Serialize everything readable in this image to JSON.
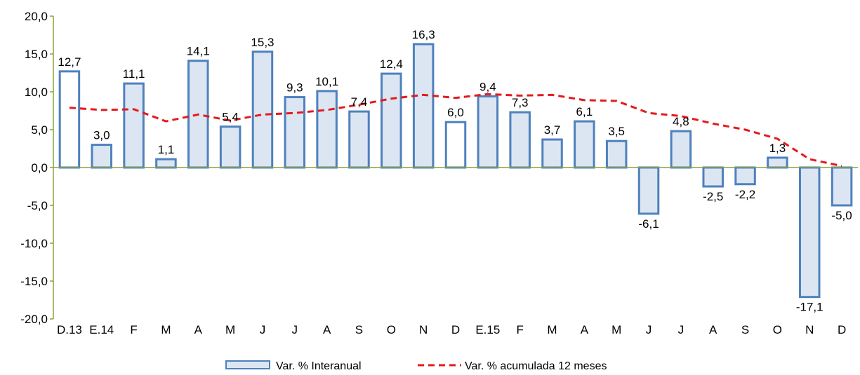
{
  "chart_data": {
    "type": "bar",
    "categories": [
      "D.13",
      "E.14",
      "F",
      "M",
      "A",
      "M",
      "J",
      "J",
      "A",
      "S",
      "O",
      "N",
      "D",
      "E.15",
      "F",
      "M",
      "A",
      "M",
      "J",
      "J",
      "A",
      "S",
      "O",
      "N",
      "D"
    ],
    "series": [
      {
        "name": "Var. % Interanual",
        "type": "bar",
        "values": [
          12.7,
          3.0,
          11.1,
          1.1,
          14.1,
          5.4,
          15.3,
          9.3,
          10.1,
          7.4,
          12.4,
          16.3,
          6.0,
          9.4,
          7.3,
          3.7,
          6.1,
          3.5,
          -6.1,
          4.8,
          -2.5,
          -2.2,
          1.3,
          -17.1,
          -5.0
        ],
        "labels": [
          "12,7",
          "3,0",
          "11,1",
          "1,1",
          "14,1",
          "5,4",
          "15,3",
          "9,3",
          "10,1",
          "7,4",
          "12,4",
          "16,3",
          "6,0",
          "9,4",
          "7,3",
          "3,7",
          "6,1",
          "3,5",
          "-6,1",
          "4,8",
          "-2,5",
          "-2,2",
          "1,3",
          "-17,1",
          "-5,0"
        ],
        "fill": "#dce6f2",
        "stroke": "#4f81bd",
        "white_fill_indices": [
          0,
          12
        ]
      },
      {
        "name": "Var. % acumulada 12 meses",
        "type": "line",
        "style": "dashed",
        "color": "#e41a1c",
        "values": [
          7.9,
          7.6,
          7.7,
          6.1,
          7.0,
          6.2,
          7.0,
          7.2,
          7.6,
          8.3,
          9.1,
          9.6,
          9.2,
          9.7,
          9.5,
          9.6,
          8.9,
          8.8,
          7.2,
          6.8,
          5.8,
          5.0,
          3.8,
          1.1,
          0.2
        ]
      }
    ],
    "ylim": [
      -20,
      20
    ],
    "yticks": [
      -20,
      -15,
      -10,
      -5,
      0,
      5,
      10,
      15,
      20
    ],
    "ytick_labels": [
      "-20,0",
      "-15,0",
      "-10,0",
      "-5,0",
      "0,0",
      "5,0",
      "10,0",
      "15,0",
      "20,0"
    ],
    "axis_color": "#8ca03c",
    "legend_position": "bottom",
    "grid": false
  },
  "legend": {
    "bar_label": "Var. % Interanual",
    "line_label": "Var. % acumulada 12 meses"
  }
}
